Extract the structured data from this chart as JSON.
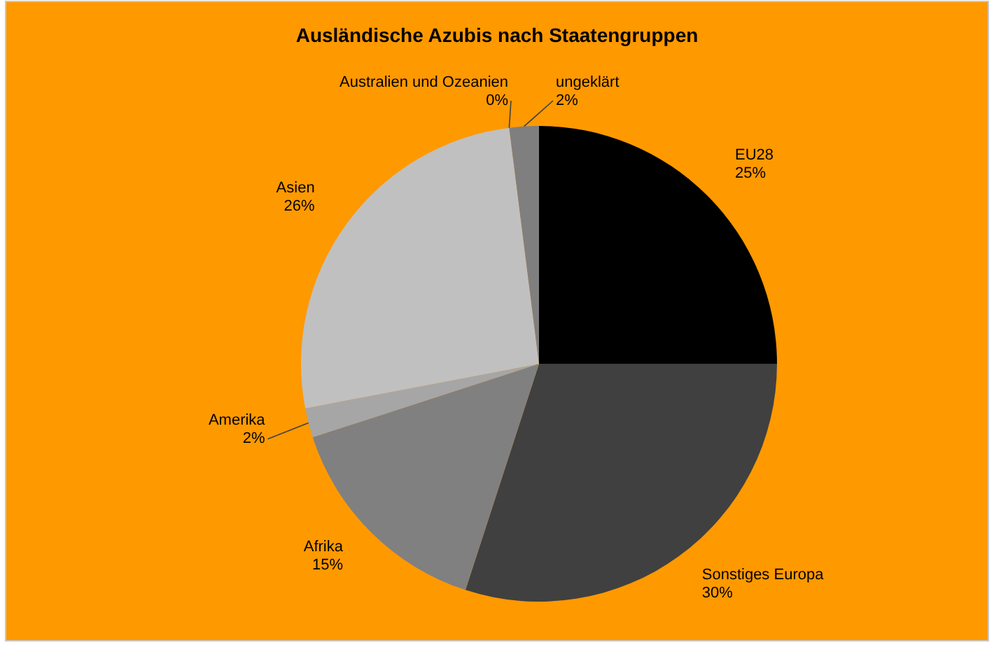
{
  "chart_data": {
    "type": "pie",
    "title": "Ausländische Azubis nach Staatengruppen",
    "categories": [
      "EU28",
      "Sonstiges Europa",
      "Afrika",
      "Amerika",
      "Asien",
      "Australien und Ozeanien",
      "ungeklärt"
    ],
    "values": [
      25,
      30,
      15,
      2,
      26,
      0,
      2
    ],
    "colors": [
      "#000000",
      "#404040",
      "#808080",
      "#a6a6a6",
      "#c0c0c0",
      "#d9d9d9",
      "#7f7f7f"
    ],
    "value_labels": [
      "25%",
      "30%",
      "15%",
      "2%",
      "26%",
      "0%",
      "2%"
    ]
  }
}
